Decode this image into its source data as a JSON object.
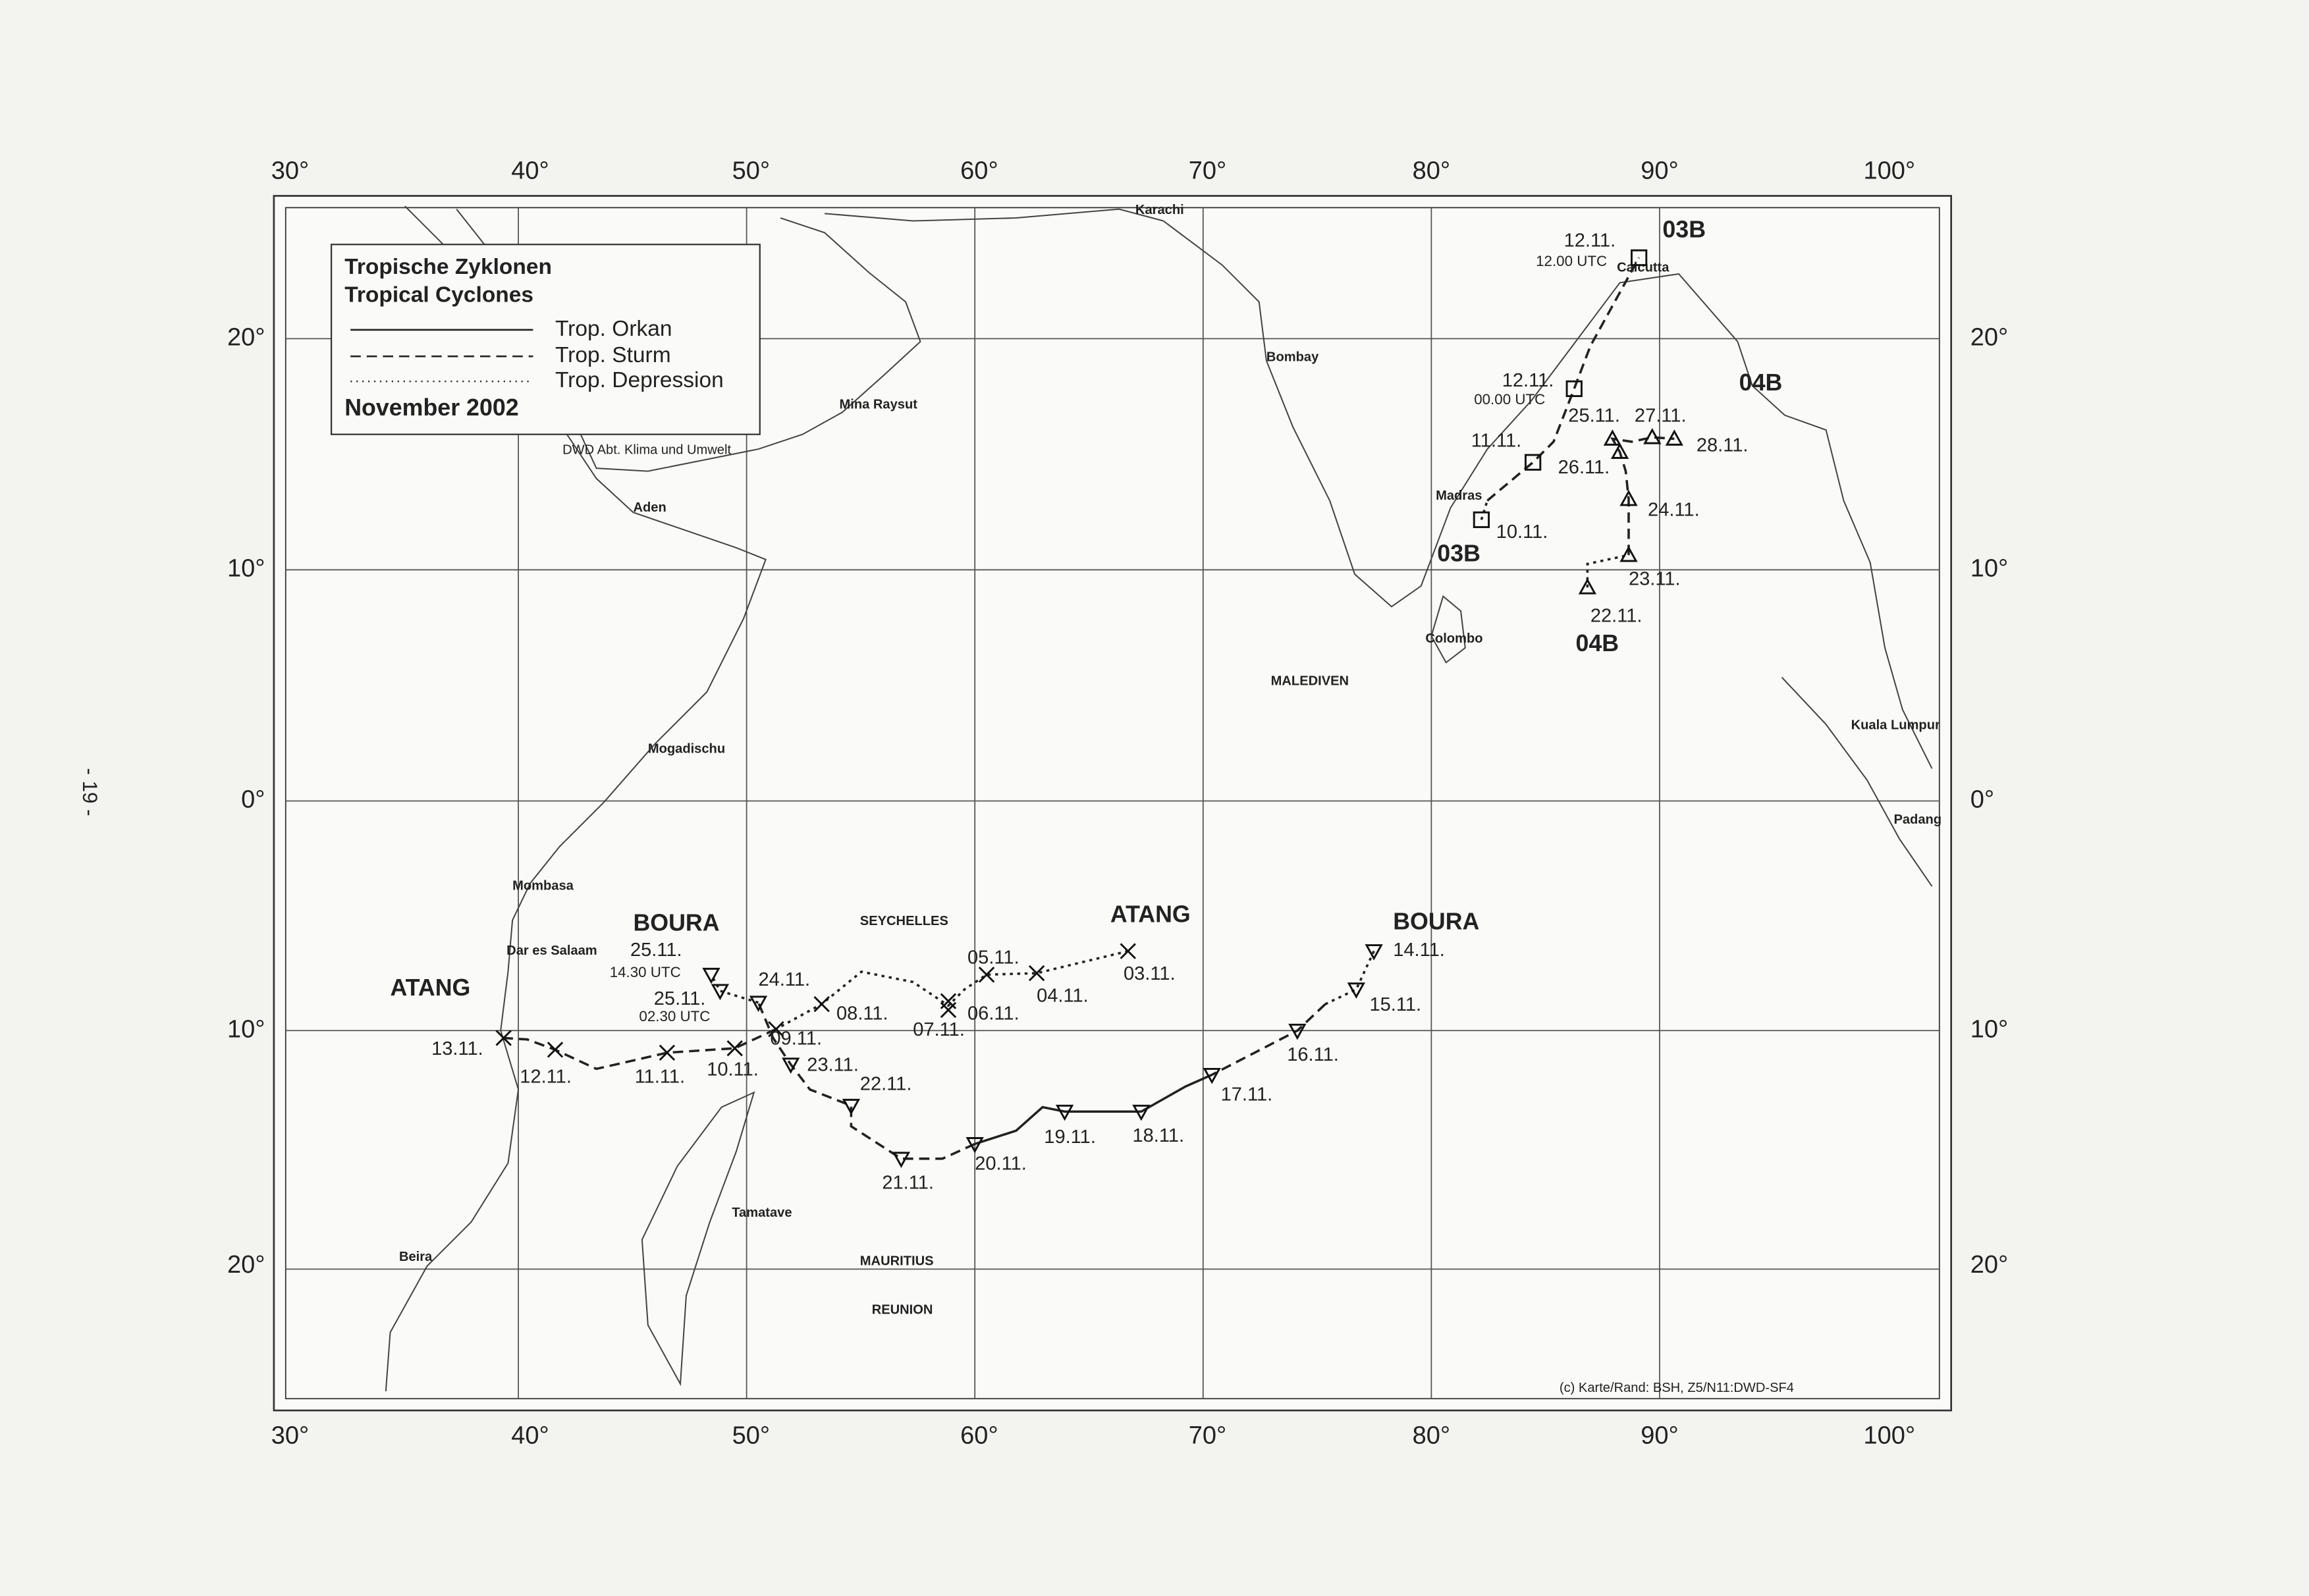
{
  "page_number": "- 19 -",
  "map": {
    "longitudes": [
      "30°",
      "40°",
      "50°",
      "60°",
      "70°",
      "80°",
      "90°",
      "100°"
    ],
    "latitudes": [
      "20°",
      "10°",
      "0°",
      "10°",
      "20°"
    ],
    "legend": {
      "title_de": "Tropische Zyklonen",
      "title_en": "Tropical Cyclones",
      "items": [
        "Trop. Orkan",
        "Trop. Sturm",
        "Trop. Depression"
      ],
      "period": "November 2002",
      "credit": "DWD   Abt. Klima und Umwelt"
    },
    "places": [
      "Karachi",
      "Bombay",
      "Mina Raysut",
      "Aden",
      "Madras",
      "Colombo",
      "MALEDIVEN",
      "Calcutta",
      "Kuala Lumpur",
      "Padang",
      "Mogadischu",
      "Mombasa",
      "Dar es Salaam",
      "SEYCHELLES",
      "Tamatave",
      "MAURITIUS",
      "REUNION",
      "Beira"
    ],
    "storms": [
      {
        "name": "ATANG",
        "fixes": [
          {
            "date": "03.11."
          },
          {
            "date": "04.11."
          },
          {
            "date": "05.11."
          },
          {
            "date": "06.11."
          },
          {
            "date": "07.11."
          },
          {
            "date": "08.11."
          },
          {
            "date": "09.11."
          },
          {
            "date": "10.11."
          },
          {
            "date": "11.11."
          },
          {
            "date": "12.11."
          },
          {
            "date": "13.11."
          }
        ]
      },
      {
        "name": "BOURA",
        "fixes": [
          {
            "date": "14.11."
          },
          {
            "date": "15.11."
          },
          {
            "date": "16.11."
          },
          {
            "date": "17.11."
          },
          {
            "date": "18.11."
          },
          {
            "date": "19.11."
          },
          {
            "date": "20.11."
          },
          {
            "date": "21.11."
          },
          {
            "date": "22.11."
          },
          {
            "date": "23.11."
          },
          {
            "date": "24.11."
          },
          {
            "date": "25.11.",
            "time": "02.30 UTC"
          },
          {
            "date": "25.11.",
            "time": "14.30 UTC"
          }
        ]
      },
      {
        "name": "03B",
        "fixes": [
          {
            "date": "10.11."
          },
          {
            "date": "11.11."
          },
          {
            "date": "12.11.",
            "time": "00.00 UTC"
          },
          {
            "date": "12.11.",
            "time": "12.00 UTC"
          }
        ]
      },
      {
        "name": "04B",
        "fixes": [
          {
            "date": "22.11."
          },
          {
            "date": "23.11."
          },
          {
            "date": "24.11."
          },
          {
            "date": "25.11."
          },
          {
            "date": "26.11."
          },
          {
            "date": "27.11."
          },
          {
            "date": "28.11."
          }
        ]
      }
    ],
    "copyright": "(c) Karte/Rand: BSH, Z5/N11:DWD-SF4"
  }
}
